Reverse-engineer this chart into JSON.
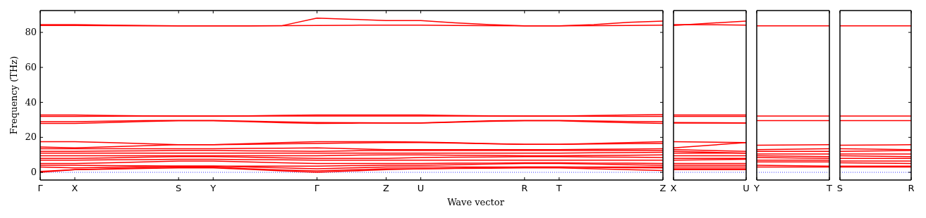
{
  "chart_data": [
    {
      "type": "line",
      "ylabel": "Frequency (THz)",
      "xlabel": "Wave vector",
      "categories": [
        "Γ",
        "X",
        null,
        null,
        "S",
        "Y",
        null,
        null,
        "Γ",
        null,
        "Z",
        "U",
        null,
        null,
        "R",
        "T",
        null,
        null,
        "Z"
      ],
      "ylim": [
        -4.4,
        92.5
      ],
      "yticks": [
        0,
        20,
        40,
        60,
        80
      ],
      "marker": "none",
      "line_style": "solid",
      "ref_lines": [
        {
          "axis": "y",
          "value": 0,
          "color": "#0000ff",
          "line_style": "dotted"
        }
      ],
      "series": [
        {
          "color": "#ff0000",
          "values": [
            84.5,
            84.5,
            84.2,
            84.0,
            83.8,
            83.8,
            83.8,
            83.9,
            84.0,
            84.1,
            84.2,
            84.2,
            84.0,
            83.9,
            83.8,
            83.8,
            83.9,
            84.0,
            84.2
          ]
        },
        {
          "color": "#ff0000",
          "values": [
            84.0,
            84.0,
            83.9,
            83.8,
            83.8,
            83.8,
            83.8,
            83.9,
            88.2,
            87.5,
            86.8,
            86.8,
            85.5,
            84.5,
            83.8,
            83.8,
            84.5,
            85.8,
            86.5
          ]
        },
        {
          "color": "#ff0000",
          "values": [
            32.8,
            32.8,
            32.5,
            32.3,
            32.2,
            32.2,
            32.3,
            32.6,
            32.8,
            32.8,
            32.8,
            32.8,
            32.5,
            32.3,
            32.2,
            32.2,
            32.5,
            32.8,
            33.0
          ]
        },
        {
          "color": "#ff0000",
          "values": [
            32.0,
            32.0,
            32.1,
            32.2,
            32.2,
            32.2,
            32.2,
            32.2,
            32.2,
            32.2,
            32.2,
            32.2,
            32.2,
            32.2,
            32.2,
            32.2,
            32.1,
            32.0,
            32.0
          ]
        },
        {
          "color": "#ff0000",
          "values": [
            29.0,
            29.0,
            29.3,
            29.6,
            29.7,
            29.7,
            29.3,
            28.9,
            28.5,
            28.4,
            28.3,
            28.3,
            28.9,
            29.5,
            29.7,
            29.7,
            29.4,
            29.1,
            29.0
          ]
        },
        {
          "color": "#ff0000",
          "values": [
            28.0,
            28.0,
            28.5,
            29.1,
            29.5,
            29.5,
            29.0,
            28.4,
            28.0,
            28.1,
            28.2,
            28.2,
            28.7,
            29.2,
            29.5,
            29.5,
            28.9,
            28.4,
            28.0
          ]
        },
        {
          "color": "#ff0000",
          "values": [
            17.5,
            17.5,
            17.0,
            16.4,
            15.8,
            15.8,
            16.4,
            17.0,
            17.5,
            17.5,
            17.5,
            17.3,
            16.9,
            16.4,
            16.0,
            16.0,
            16.5,
            17.0,
            17.5
          ]
        },
        {
          "color": "#ff0000",
          "values": [
            14.5,
            14.0,
            14.6,
            15.2,
            15.8,
            15.8,
            16.0,
            16.3,
            16.5,
            16.8,
            17.0,
            17.0,
            16.7,
            16.3,
            16.0,
            16.0,
            16.2,
            16.4,
            16.5
          ]
        },
        {
          "color": "#ff0000",
          "values": [
            13.5,
            13.5,
            13.5,
            13.5,
            13.5,
            13.5,
            13.7,
            13.8,
            14.0,
            13.5,
            13.0,
            13.0,
            13.0,
            13.0,
            13.0,
            13.0,
            13.2,
            13.3,
            13.5
          ]
        },
        {
          "color": "#ff0000",
          "values": [
            12.0,
            12.0,
            12.2,
            12.3,
            12.5,
            12.5,
            12.3,
            12.2,
            12.0,
            12.3,
            12.5,
            12.5,
            12.5,
            12.5,
            12.5,
            12.5,
            12.5,
            12.5,
            12.5
          ]
        },
        {
          "color": "#ff0000",
          "values": [
            11,
            11,
            11,
            11,
            11,
            11,
            11,
            11,
            11,
            11,
            11,
            11,
            11,
            11,
            11,
            11,
            11.2,
            11.3,
            11.5
          ]
        },
        {
          "color": "#ff0000",
          "values": [
            9.5,
            9.5,
            9.5,
            9.5,
            9.5,
            9.5,
            9.5,
            9.5,
            9.5,
            9.8,
            10,
            10,
            9.8,
            9.7,
            9.5,
            9.5,
            9.7,
            9.8,
            10
          ]
        },
        {
          "color": "#ff0000",
          "values": [
            8,
            8,
            8.3,
            8.7,
            9,
            9,
            8.7,
            8.3,
            8,
            8,
            8,
            8.5,
            8.7,
            8.8,
            9,
            9,
            8.8,
            8.7,
            8.5
          ]
        },
        {
          "color": "#ff0000",
          "values": [
            7,
            7,
            7.2,
            7.3,
            7.5,
            7.5,
            7.3,
            7.2,
            7,
            7,
            7,
            7,
            7,
            7,
            7,
            7,
            7,
            7,
            7
          ]
        },
        {
          "color": "#ff0000",
          "values": [
            5,
            5,
            5.5,
            6,
            6.5,
            6.5,
            6,
            5.5,
            5,
            5,
            5,
            5,
            5.2,
            5.3,
            5.5,
            5.5,
            5.3,
            5.2,
            5
          ]
        },
        {
          "color": "#ff0000",
          "values": [
            4,
            4,
            3.8,
            3.7,
            3.5,
            3.5,
            3.5,
            3.5,
            3.5,
            3.8,
            4,
            4,
            4.3,
            4.7,
            5,
            5,
            4.7,
            4.3,
            4
          ]
        },
        {
          "color": "#ff0000",
          "values": [
            3,
            2.5,
            2.8,
            3.2,
            3.5,
            3.5,
            3,
            2.5,
            2,
            2.5,
            3,
            3,
            3,
            3,
            3,
            3,
            3,
            3,
            3
          ]
        },
        {
          "color": "#ff0000",
          "values": [
            0.5,
            1.5,
            2,
            2.5,
            3,
            3,
            2,
            1.3,
            0.8,
            1.4,
            2,
            2,
            2.3,
            2.7,
            3,
            3,
            2.8,
            2.6,
            2.5
          ]
        },
        {
          "color": "#ff0000",
          "values": [
            0,
            1.5,
            1.8,
            2.2,
            2.5,
            2.5,
            1.7,
            0.8,
            0,
            0.8,
            1.5,
            2,
            2.2,
            2.3,
            2.5,
            2.5,
            2,
            1.5,
            1
          ]
        }
      ]
    },
    {
      "type": "line",
      "categories": [
        "X",
        "U"
      ],
      "ylim": [
        -4.4,
        92.5
      ],
      "yticks": [
        0,
        20,
        40,
        60,
        80
      ],
      "tick_labels": "x",
      "marker": "none",
      "line_style": "solid",
      "ref_lines": [
        {
          "axis": "y",
          "value": 0,
          "color": "#0000ff",
          "line_style": "dotted"
        }
      ],
      "series": [
        {
          "color": "#ff0000",
          "values": [
            84,
            86.5
          ]
        },
        {
          "color": "#ff0000",
          "values": [
            84.5,
            84.2
          ]
        },
        {
          "color": "#ff0000",
          "values": [
            32.8,
            32.8
          ]
        },
        {
          "color": "#ff0000",
          "values": [
            32,
            32
          ]
        },
        {
          "color": "#ff0000",
          "values": [
            28.5,
            28.3
          ]
        },
        {
          "color": "#ff0000",
          "values": [
            28.2,
            28.2
          ]
        },
        {
          "color": "#ff0000",
          "values": [
            17.5,
            17
          ]
        },
        {
          "color": "#ff0000",
          "values": [
            14,
            17
          ]
        },
        {
          "color": "#ff0000",
          "values": [
            13,
            12
          ]
        },
        {
          "color": "#ff0000",
          "values": [
            12,
            11
          ]
        },
        {
          "color": "#ff0000",
          "values": [
            11,
            11
          ]
        },
        {
          "color": "#ff0000",
          "values": [
            9.5,
            9.5
          ]
        },
        {
          "color": "#ff0000",
          "values": [
            8,
            8
          ]
        },
        {
          "color": "#ff0000",
          "values": [
            7,
            7.5
          ]
        },
        {
          "color": "#ff0000",
          "values": [
            5,
            5
          ]
        },
        {
          "color": "#ff0000",
          "values": [
            4,
            4
          ]
        },
        {
          "color": "#ff0000",
          "values": [
            3,
            3
          ]
        },
        {
          "color": "#ff0000",
          "values": [
            2,
            2
          ]
        },
        {
          "color": "#ff0000",
          "values": [
            1.5,
            1.5
          ]
        }
      ]
    },
    {
      "type": "line",
      "categories": [
        "Y",
        "T"
      ],
      "ylim": [
        -4.4,
        92.5
      ],
      "yticks": [
        0,
        20,
        40,
        60,
        80
      ],
      "tick_labels": "x",
      "marker": "none",
      "line_style": "solid",
      "ref_lines": [
        {
          "axis": "y",
          "value": 0,
          "color": "#0000ff",
          "line_style": "dotted"
        }
      ],
      "series": [
        {
          "color": "#ff0000",
          "values": [
            83.8,
            83.8
          ]
        },
        {
          "color": "#ff0000",
          "values": [
            32.2,
            32.2
          ]
        },
        {
          "color": "#ff0000",
          "values": [
            29.6,
            29.6
          ]
        },
        {
          "color": "#ff0000",
          "values": [
            15.5,
            15.8
          ]
        },
        {
          "color": "#ff0000",
          "values": [
            13,
            13.5
          ]
        },
        {
          "color": "#ff0000",
          "values": [
            12,
            12
          ]
        },
        {
          "color": "#ff0000",
          "values": [
            10.5,
            10.5
          ]
        },
        {
          "color": "#ff0000",
          "values": [
            9.5,
            9
          ]
        },
        {
          "color": "#ff0000",
          "values": [
            8.5,
            8
          ]
        },
        {
          "color": "#ff0000",
          "values": [
            7,
            7
          ]
        },
        {
          "color": "#ff0000",
          "values": [
            6,
            6
          ]
        },
        {
          "color": "#ff0000",
          "values": [
            4,
            3.5
          ]
        },
        {
          "color": "#ff0000",
          "values": [
            3,
            3
          ]
        }
      ]
    },
    {
      "type": "line",
      "categories": [
        "S",
        "R"
      ],
      "ylim": [
        -4.4,
        92.5
      ],
      "yticks": [
        0,
        20,
        40,
        60,
        80
      ],
      "tick_labels": "x",
      "marker": "none",
      "line_style": "solid",
      "ref_lines": [
        {
          "axis": "y",
          "value": 0,
          "color": "#0000ff",
          "line_style": "dotted"
        }
      ],
      "series": [
        {
          "color": "#ff0000",
          "values": [
            83.8,
            83.8
          ]
        },
        {
          "color": "#ff0000",
          "values": [
            32.2,
            32.2
          ]
        },
        {
          "color": "#ff0000",
          "values": [
            29.6,
            29.6
          ]
        },
        {
          "color": "#ff0000",
          "values": [
            15.5,
            15.8
          ]
        },
        {
          "color": "#ff0000",
          "values": [
            13.5,
            13
          ]
        },
        {
          "color": "#ff0000",
          "values": [
            12,
            12.5
          ]
        },
        {
          "color": "#ff0000",
          "values": [
            10.5,
            10.5
          ]
        },
        {
          "color": "#ff0000",
          "values": [
            9.5,
            9
          ]
        },
        {
          "color": "#ff0000",
          "values": [
            8,
            8
          ]
        },
        {
          "color": "#ff0000",
          "values": [
            6.5,
            6.5
          ]
        },
        {
          "color": "#ff0000",
          "values": [
            5.5,
            5
          ]
        },
        {
          "color": "#ff0000",
          "values": [
            3.5,
            3.5
          ]
        },
        {
          "color": "#ff0000",
          "values": [
            3,
            3
          ]
        }
      ]
    }
  ]
}
